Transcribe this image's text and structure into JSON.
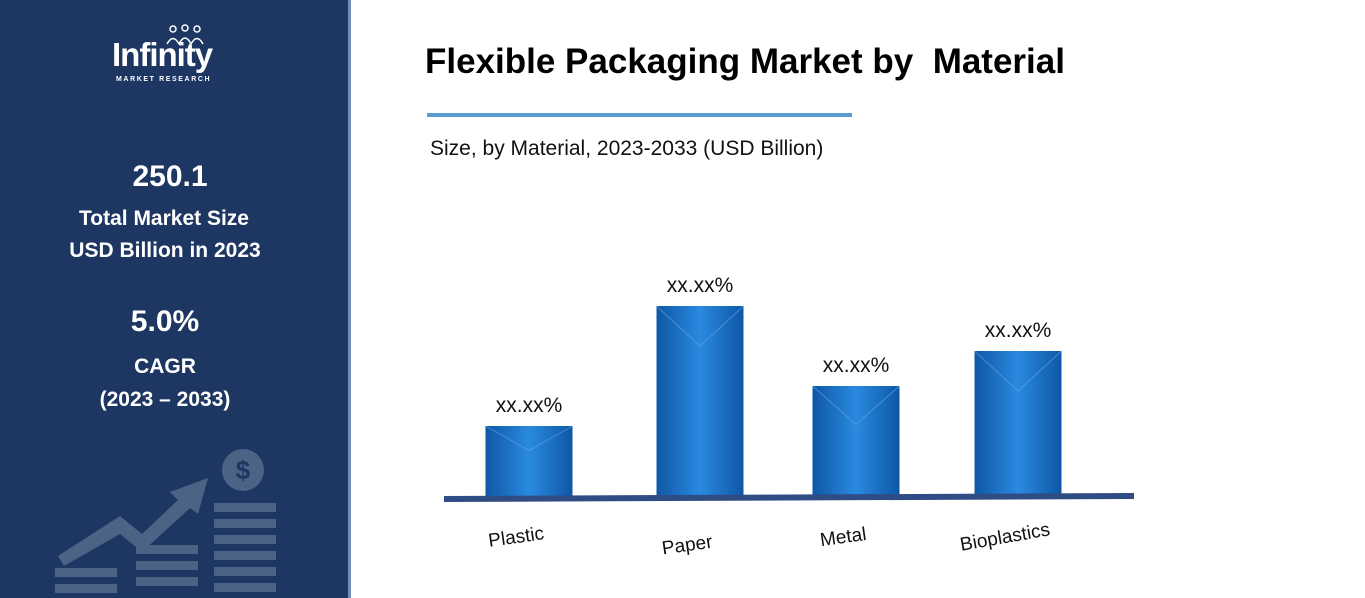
{
  "sidebar": {
    "logo": {
      "name": "Infinity",
      "tagline": "MARKET RESEARCH"
    },
    "market_size": {
      "value": "250.1",
      "label_line1": "Total Market Size",
      "label_line2": "USD Billion in 2023"
    },
    "cagr": {
      "value": "5.0%",
      "label": "CAGR",
      "period": "(2023 – 2033)"
    },
    "decoration_icon": "growth-chart-dollar-icon"
  },
  "header": {
    "title": "Flexible Packaging Market by  Material",
    "subtitle": "Size, by Material, 2023-2033 (USD Billion)"
  },
  "colors": {
    "sidebar_bg": "#1d3762",
    "bar": "#1a74c9",
    "axis": "#2f4d84",
    "accent_rule": "#5a9bd4"
  },
  "chart_data": {
    "type": "bar",
    "categories": [
      "Plastic",
      "Paper",
      "Metal",
      "Bioplastics"
    ],
    "values": [
      70,
      190,
      110,
      145
    ],
    "value_units": "relative bar height (values not printed)",
    "data_labels": [
      "xx.xx%",
      "xx.xx%",
      "xx.xx%",
      "xx.xx%"
    ],
    "title": "Flexible Packaging Market by  Material",
    "subtitle": "Size, by Material, 2023-2033 (USD Billion)",
    "xlabel": "",
    "ylabel": "",
    "ylim": [
      0,
      200
    ],
    "grid": false,
    "legend": "none"
  }
}
